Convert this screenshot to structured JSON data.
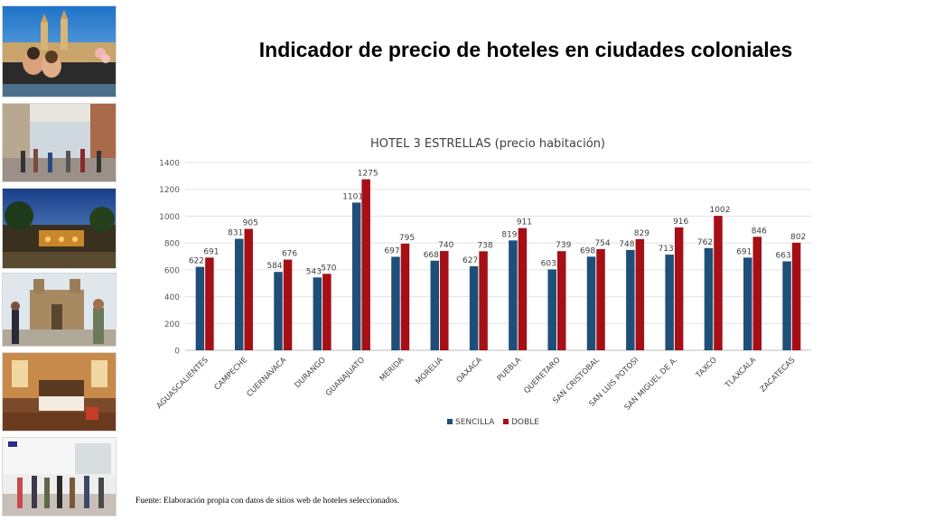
{
  "slide": {
    "title": "Indicador de precio de hoteles en ciudades coloniales",
    "source": "Fuente: Elaboración propia con datos de sitios web de hoteles seleccionados."
  },
  "photos": [
    {
      "label": "ropa",
      "subject": "couple in rooftop pool with cathedral"
    },
    {
      "label": "street",
      "subject": "pedestrian colonial street"
    },
    {
      "label": "garden",
      "subject": "hotel garden at dusk"
    },
    {
      "label": "church",
      "subject": "tourists photographing church"
    },
    {
      "label": "room",
      "subject": "hotel room interior"
    },
    {
      "label": "market",
      "subject": "people walking in arcade"
    }
  ],
  "chart_data": {
    "type": "bar",
    "title": "HOTEL 3 ESTRELLAS (precio habitación)",
    "xlabel": "",
    "ylabel": "",
    "ylim": [
      0,
      1400
    ],
    "yticks": [
      0,
      200,
      400,
      600,
      800,
      1000,
      1200,
      1400
    ],
    "grid": true,
    "legend_position": "bottom",
    "categories": [
      "AGUASCALIENTES",
      "CAMPECHE",
      "CUERNAVACA",
      "DURANGO",
      "GUANAJUATO",
      "MERIDA",
      "MORELIA",
      "OAXACA",
      "PUEBLA",
      "QUERETARO",
      "SAN CRISTOBAL",
      "SAN LUIS POTOSI",
      "SAN MIGUEL DE A.",
      "TAXCO",
      "TLAXCALA",
      "ZACATECAS"
    ],
    "series": [
      {
        "name": "SENCILLA",
        "color": "#1f4e79",
        "values": [
          622,
          831,
          584,
          543,
          1101,
          697,
          668,
          627,
          819,
          603,
          698,
          748,
          713,
          762,
          691,
          663
        ]
      },
      {
        "name": "DOBLE",
        "color": "#a50f15",
        "values": [
          691,
          905,
          676,
          570,
          1275,
          795,
          740,
          738,
          911,
          739,
          754,
          829,
          916,
          1002,
          846,
          802
        ]
      }
    ]
  }
}
